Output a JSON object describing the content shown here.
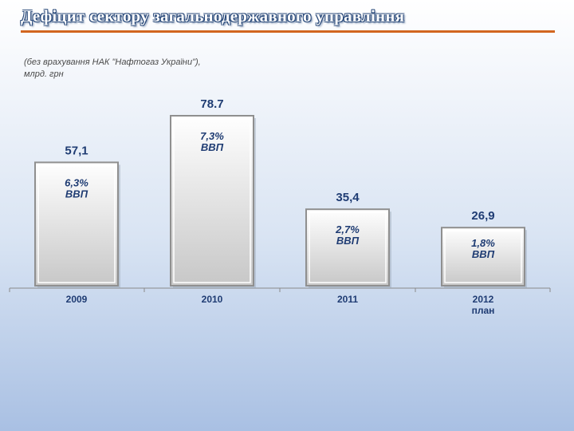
{
  "title": "Дефіцит сектору загальнодержавного управління",
  "subtitle_line1": "(без врахування НАК \"Нафтогаз України\"),",
  "subtitle_line2": "млрд. грн",
  "colors": {
    "title_rule": "#d2661f",
    "text_blue": "#1f3c73",
    "bar_fill_top": "#ffffff",
    "bar_fill_bottom": "#c7c7c7"
  },
  "chart_data": {
    "type": "bar",
    "categories": [
      "2009",
      "2010",
      "2011",
      "2012 план"
    ],
    "category_lines": [
      [
        "2009"
      ],
      [
        "2010"
      ],
      [
        "2011"
      ],
      [
        "2012",
        "план"
      ]
    ],
    "values": [
      57.1,
      78.7,
      35.4,
      26.9
    ],
    "value_labels": [
      "57,1",
      "78.7",
      "35,4",
      "26,9"
    ],
    "inner_labels": [
      [
        "6,3%",
        "ВВП"
      ],
      [
        "7,3%",
        "ВВП"
      ],
      [
        "2,7%",
        "ВВП"
      ],
      [
        "1,8%",
        "ВВП"
      ]
    ],
    "xlabel": "",
    "ylabel": "",
    "ylim": [
      0,
      78.7
    ],
    "grid": false,
    "legend": "none"
  }
}
